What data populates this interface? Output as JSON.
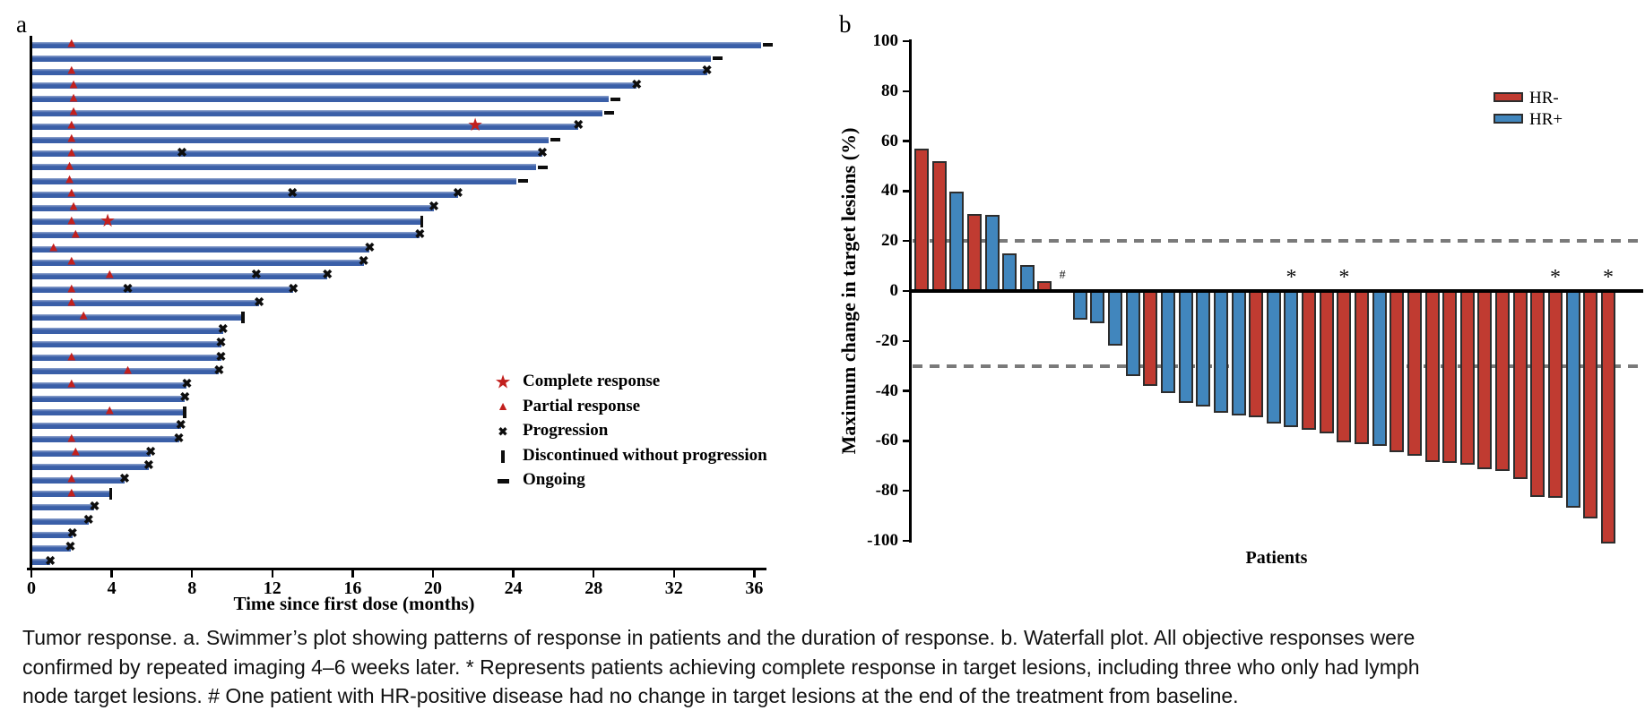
{
  "colors": {
    "swimmer_bar_blue": "#3a5fa8",
    "response_marker_red": "#c2201e",
    "hr_negative_red": "#c03b31",
    "hr_positive_blue": "#4186bd",
    "bar_border": "#2d2d2d",
    "reference_dash_gray": "#7a7a7a",
    "axis_black": "#000000"
  },
  "chart_data": [
    {
      "type": "swimmer",
      "panel_label": "a",
      "xlabel": "Time since first dose (months)",
      "xlim": [
        0,
        37.5
      ],
      "x_ticks": [
        0,
        4,
        8,
        12,
        16,
        20,
        24,
        28,
        32,
        36
      ],
      "grid": false,
      "legend_position": "right-middle",
      "legend": [
        {
          "symbol": "star",
          "label": "Complete response"
        },
        {
          "symbol": "triangle",
          "label": "Partial response"
        },
        {
          "symbol": "cross",
          "label": "Progression"
        },
        {
          "symbol": "vbar",
          "label": "Discontinued without progression"
        },
        {
          "symbol": "dash",
          "label": "Ongoing"
        }
      ],
      "bars": [
        {
          "duration_months": 36.3,
          "end_event": "ongoing",
          "partial_response_month": 2.0
        },
        {
          "duration_months": 33.8,
          "end_event": "ongoing"
        },
        {
          "duration_months": 33.6,
          "end_event": "progression",
          "partial_response_month": 2.0
        },
        {
          "duration_months": 30.1,
          "end_event": "progression",
          "partial_response_month": 2.1
        },
        {
          "duration_months": 28.7,
          "end_event": "ongoing",
          "partial_response_month": 2.1
        },
        {
          "duration_months": 28.4,
          "end_event": "ongoing",
          "partial_response_month": 2.1
        },
        {
          "duration_months": 27.2,
          "end_event": "progression",
          "partial_response_month": 2.0,
          "complete_response_month": 22.1
        },
        {
          "duration_months": 25.7,
          "end_event": "ongoing",
          "partial_response_month": 2.0
        },
        {
          "duration_months": 25.4,
          "end_event": "progression",
          "partial_response_month": 2.0,
          "progression_month": 7.5
        },
        {
          "duration_months": 25.1,
          "end_event": "ongoing",
          "partial_response_month": 1.9
        },
        {
          "duration_months": 24.1,
          "end_event": "ongoing",
          "partial_response_month": 1.9
        },
        {
          "duration_months": 21.2,
          "end_event": "progression",
          "partial_response_month": 2.0,
          "progression_month": 13.0
        },
        {
          "duration_months": 20.0,
          "end_event": "progression",
          "partial_response_month": 2.1
        },
        {
          "duration_months": 19.4,
          "end_event": "discontinued",
          "partial_response_month": 2.0,
          "complete_response_month": 3.8
        },
        {
          "duration_months": 19.3,
          "end_event": "progression",
          "partial_response_month": 2.2
        },
        {
          "duration_months": 16.8,
          "end_event": "progression",
          "partial_response_month": 1.1
        },
        {
          "duration_months": 16.5,
          "end_event": "progression",
          "partial_response_month": 2.0
        },
        {
          "duration_months": 14.7,
          "end_event": "progression",
          "partial_response_month": 3.9,
          "progression_month": 11.2
        },
        {
          "duration_months": 13.0,
          "end_event": "progression",
          "partial_response_month": 2.0,
          "progression_month": 4.8
        },
        {
          "duration_months": 11.3,
          "end_event": "progression",
          "partial_response_month": 2.0
        },
        {
          "duration_months": 10.5,
          "end_event": "discontinued",
          "partial_response_month": 2.6
        },
        {
          "duration_months": 9.5,
          "end_event": "progression"
        },
        {
          "duration_months": 9.4,
          "end_event": "progression"
        },
        {
          "duration_months": 9.4,
          "end_event": "progression",
          "partial_response_month": 2.0
        },
        {
          "duration_months": 9.3,
          "end_event": "progression",
          "partial_response_month": 4.8
        },
        {
          "duration_months": 7.7,
          "end_event": "progression",
          "partial_response_month": 2.0
        },
        {
          "duration_months": 7.6,
          "end_event": "progression"
        },
        {
          "duration_months": 7.6,
          "end_event": "discontinued",
          "partial_response_month": 3.9
        },
        {
          "duration_months": 7.4,
          "end_event": "progression"
        },
        {
          "duration_months": 7.3,
          "end_event": "progression",
          "partial_response_month": 2.0
        },
        {
          "duration_months": 5.9,
          "end_event": "progression",
          "partial_response_month": 2.2
        },
        {
          "duration_months": 5.8,
          "end_event": "progression"
        },
        {
          "duration_months": 4.6,
          "end_event": "progression",
          "partial_response_month": 2.0
        },
        {
          "duration_months": 3.9,
          "end_event": "discontinued",
          "partial_response_month": 2.0
        },
        {
          "duration_months": 3.1,
          "end_event": "progression"
        },
        {
          "duration_months": 2.8,
          "end_event": "progression"
        },
        {
          "duration_months": 2.0,
          "end_event": "progression"
        },
        {
          "duration_months": 1.9,
          "end_event": "progression"
        },
        {
          "duration_months": 0.9,
          "end_event": "progression"
        }
      ]
    },
    {
      "type": "bar",
      "panel_label": "b",
      "ylabel": "Maximum change in target lesions (%)",
      "xlabel": "Patients",
      "ylim": [
        -100,
        100
      ],
      "y_ticks": [
        100,
        80,
        60,
        40,
        20,
        0,
        -20,
        -40,
        -60,
        -80,
        -100
      ],
      "reference_lines": [
        20,
        -30
      ],
      "grid": false,
      "legend_position": "top-right",
      "legend": [
        {
          "label": "HR-",
          "color": "#c03b31"
        },
        {
          "label": "HR+",
          "color": "#4186bd"
        }
      ],
      "patients": [
        {
          "value": 56,
          "group": "HR-"
        },
        {
          "value": 51,
          "group": "HR-"
        },
        {
          "value": 39,
          "group": "HR+"
        },
        {
          "value": 30,
          "group": "HR-"
        },
        {
          "value": 29.5,
          "group": "HR+"
        },
        {
          "value": 14,
          "group": "HR+"
        },
        {
          "value": 9.5,
          "group": "HR+"
        },
        {
          "value": 3,
          "group": "HR-"
        },
        {
          "value": 0,
          "group": "HR+",
          "annotation": "#"
        },
        {
          "value": -10.5,
          "group": "HR+"
        },
        {
          "value": -12,
          "group": "HR+"
        },
        {
          "value": -21,
          "group": "HR+"
        },
        {
          "value": -33,
          "group": "HR+"
        },
        {
          "value": -37,
          "group": "HR-"
        },
        {
          "value": -40,
          "group": "HR+"
        },
        {
          "value": -44,
          "group": "HR+"
        },
        {
          "value": -45.5,
          "group": "HR+"
        },
        {
          "value": -48,
          "group": "HR+"
        },
        {
          "value": -49,
          "group": "HR+"
        },
        {
          "value": -49.5,
          "group": "HR-"
        },
        {
          "value": -52,
          "group": "HR+"
        },
        {
          "value": -53.5,
          "group": "HR+",
          "annotation": "*"
        },
        {
          "value": -54.5,
          "group": "HR-"
        },
        {
          "value": -56,
          "group": "HR-"
        },
        {
          "value": -59.5,
          "group": "HR-",
          "annotation": "*"
        },
        {
          "value": -60.5,
          "group": "HR-"
        },
        {
          "value": -61,
          "group": "HR+"
        },
        {
          "value": -63.5,
          "group": "HR-"
        },
        {
          "value": -65,
          "group": "HR-"
        },
        {
          "value": -67.5,
          "group": "HR-"
        },
        {
          "value": -68,
          "group": "HR-"
        },
        {
          "value": -68.5,
          "group": "HR-"
        },
        {
          "value": -70.5,
          "group": "HR-"
        },
        {
          "value": -71,
          "group": "HR-"
        },
        {
          "value": -74.5,
          "group": "HR-"
        },
        {
          "value": -81.5,
          "group": "HR-"
        },
        {
          "value": -82,
          "group": "HR-",
          "annotation": "*"
        },
        {
          "value": -86,
          "group": "HR+"
        },
        {
          "value": -90,
          "group": "HR-"
        },
        {
          "value": -100,
          "group": "HR-",
          "annotation": "*"
        }
      ]
    }
  ],
  "caption": {
    "lines": [
      "Tumor response. a. Swimmer’s plot showing patterns of response in patients and the duration of response. b. Waterfall plot. All objective responses were",
      "confirmed by repeated imaging 4–6 weeks later. * Represents patients achieving complete response in target lesions, including three who only had lymph",
      "node target lesions. # One patient with HR-positive disease had no change in target lesions at the end of the treatment from baseline."
    ]
  }
}
